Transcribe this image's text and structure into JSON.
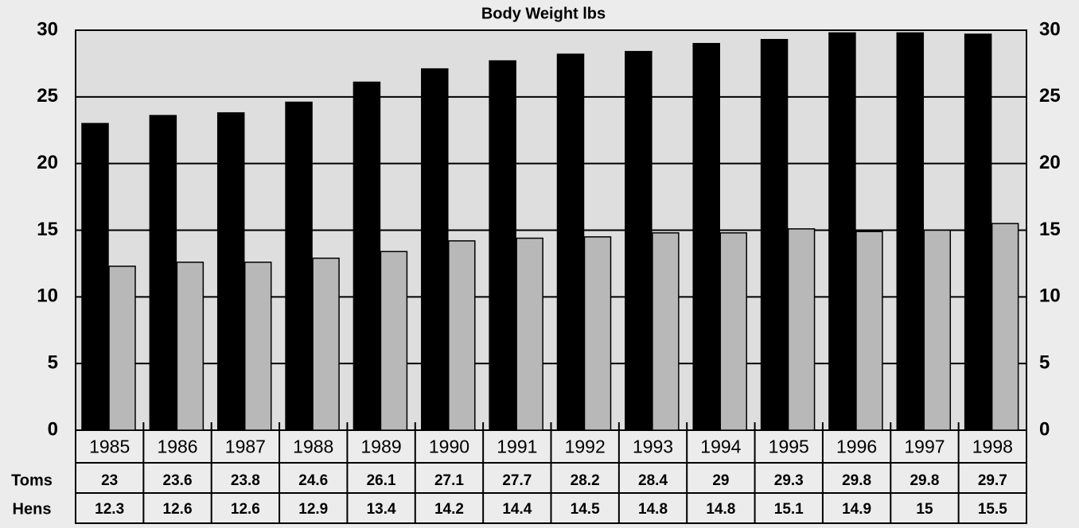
{
  "chart_data": {
    "type": "bar",
    "title": "Body Weight lbs",
    "categories": [
      "1985",
      "1986",
      "1987",
      "1988",
      "1989",
      "1990",
      "1991",
      "1992",
      "1993",
      "1994",
      "1995",
      "1996",
      "1997",
      "1998"
    ],
    "series": [
      {
        "name": "Toms",
        "color": "#000000",
        "values": [
          23,
          23.6,
          23.8,
          24.6,
          26.1,
          27.1,
          27.7,
          28.2,
          28.4,
          29,
          29.3,
          29.8,
          29.8,
          29.7
        ]
      },
      {
        "name": "Hens",
        "color": "#b8b8b8",
        "values": [
          12.3,
          12.6,
          12.6,
          12.9,
          13.4,
          14.2,
          14.4,
          14.5,
          14.8,
          14.8,
          15.1,
          14.9,
          15,
          15.5
        ]
      }
    ],
    "ylim": [
      0,
      30
    ],
    "yticks": [
      0,
      5,
      10,
      15,
      20,
      25,
      30
    ],
    "grid": true
  }
}
